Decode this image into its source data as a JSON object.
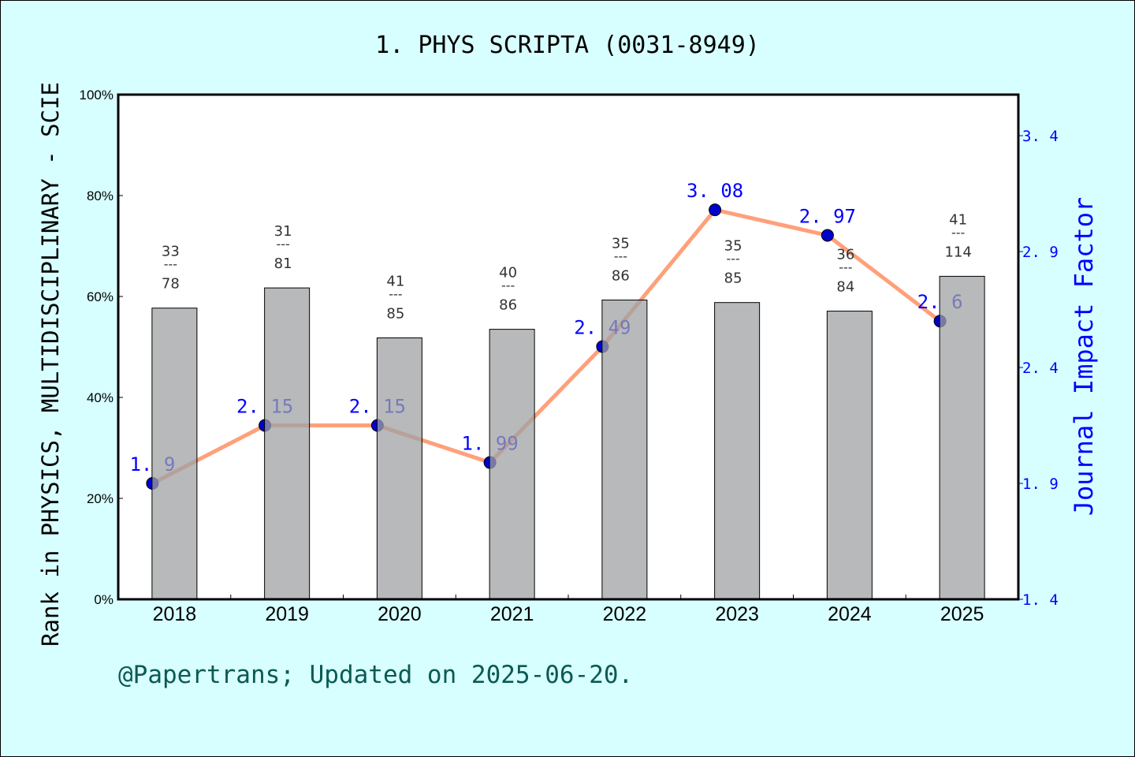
{
  "chart_data": {
    "type": "bar+line",
    "title": "1. PHYS SCRIPTA (0031-8949)",
    "ylabel": "Rank in PHYSICS, MULTIDISCIPLINARY - SCIE",
    "y2label": "Journal Impact Factor",
    "footer": "@Papertrans; Updated on 2025-06-20.",
    "categories": [
      "2018",
      "2019",
      "2020",
      "2021",
      "2022",
      "2023",
      "2024",
      "2025"
    ],
    "ylim": [
      0,
      100
    ],
    "yticks": [
      0,
      20,
      40,
      60,
      80,
      100
    ],
    "ytick_labels": [
      "0%",
      "20%",
      "40%",
      "60%",
      "80%",
      "100%"
    ],
    "y2lim": [
      1.4,
      3.577
    ],
    "y2ticks": [
      1.4,
      1.9,
      2.4,
      2.9,
      3.4
    ],
    "y2tick_labels": [
      "1.4",
      "1.9",
      "2.4",
      "2.9",
      "3.4"
    ],
    "grid": false,
    "bars": {
      "rank": [
        33,
        31,
        41,
        40,
        35,
        35,
        36,
        41
      ],
      "total": [
        78,
        81,
        85,
        86,
        86,
        85,
        84,
        114
      ],
      "percentile": [
        57.7,
        61.7,
        51.8,
        53.5,
        59.3,
        58.8,
        57.1,
        64.0
      ],
      "color": "#b8b9bb"
    },
    "line": {
      "values": [
        1.9,
        2.15,
        2.15,
        1.99,
        2.49,
        3.08,
        2.97,
        2.6
      ],
      "labels": [
        "1.9",
        "2.15",
        "2.15",
        "1.99",
        "2.49",
        "3.08",
        "2.97",
        "2.6"
      ],
      "line_color": "#ffa07a",
      "marker_color": "#0000cc",
      "label_color": "#0000ff"
    },
    "colors": {
      "background": "#d8ffff",
      "plot": "#ffffff",
      "footer": "#0a5a55",
      "y2axis": "#0000ff"
    },
    "fraction_separator": "---"
  }
}
